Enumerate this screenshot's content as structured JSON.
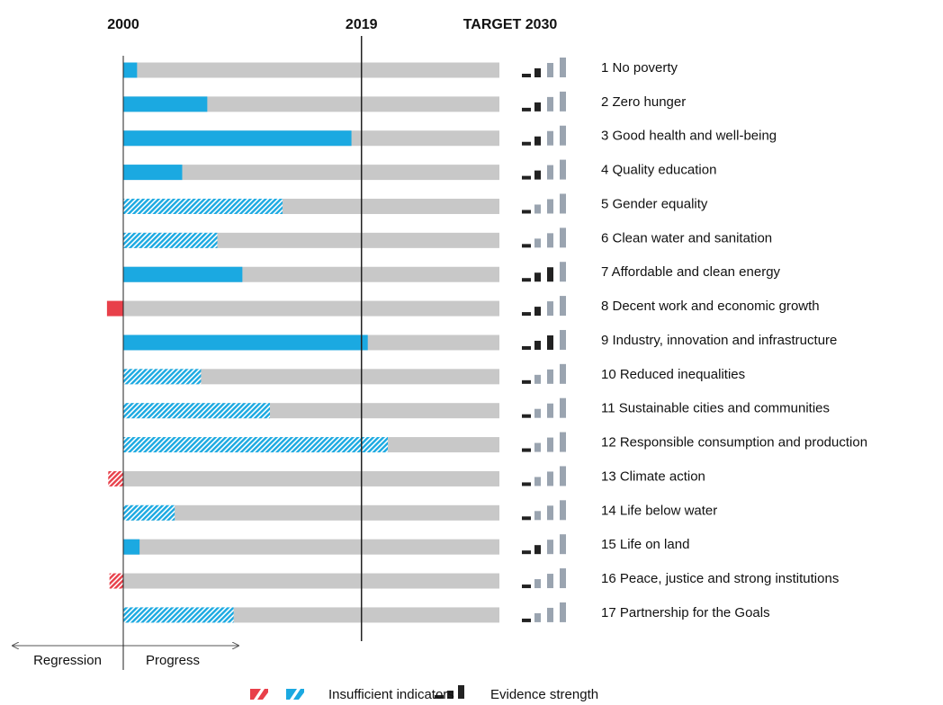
{
  "chart_data": {
    "type": "bar",
    "categories": [
      "1 No poverty",
      "2 Zero hunger",
      "3 Good health and well-being",
      "4 Quality education",
      "5 Gender equality",
      "6 Clean water and sanitation",
      "7 Affordable and clean energy",
      "8 Decent work and economic growth",
      "9 Industry, innovation and infrastructure",
      "10 Reduced inequalities",
      "11 Sustainable cities and communities",
      "12 Responsible consumption and production",
      "13 Climate action",
      "14 Life below water",
      "15 Life on land",
      "16 Peace, justice and strong institutions",
      "17 Partnership for the Goals"
    ],
    "values": [
      2001.1,
      2006.7,
      2018.2,
      2004.7,
      2012.7,
      2007.5,
      2009.5,
      1998.7,
      2019.5,
      2006.2,
      2011.7,
      2021.1,
      1998.8,
      2004.1,
      2001.3,
      1998.9,
      2008.8
    ],
    "insufficient": [
      false,
      false,
      false,
      false,
      true,
      true,
      false,
      false,
      false,
      true,
      true,
      true,
      true,
      true,
      false,
      true,
      true
    ],
    "evidence": [
      2,
      2,
      2,
      2,
      1,
      1,
      3,
      2,
      3,
      1,
      1,
      1,
      1,
      1,
      2,
      1,
      1
    ],
    "xlim": [
      2000,
      2030
    ],
    "xticks": [
      2000,
      2019,
      {
        "value": 2030,
        "label": "TARGET 2030"
      }
    ],
    "colors": {
      "progress": "#1ba9e1",
      "regression": "#e8404a",
      "track": "#c8c8c8"
    },
    "legend": {
      "insufficient": "Insufficient indicators",
      "evidence": "Evidence strength"
    },
    "direction": {
      "regression": "Regression",
      "progress": "Progress"
    }
  }
}
